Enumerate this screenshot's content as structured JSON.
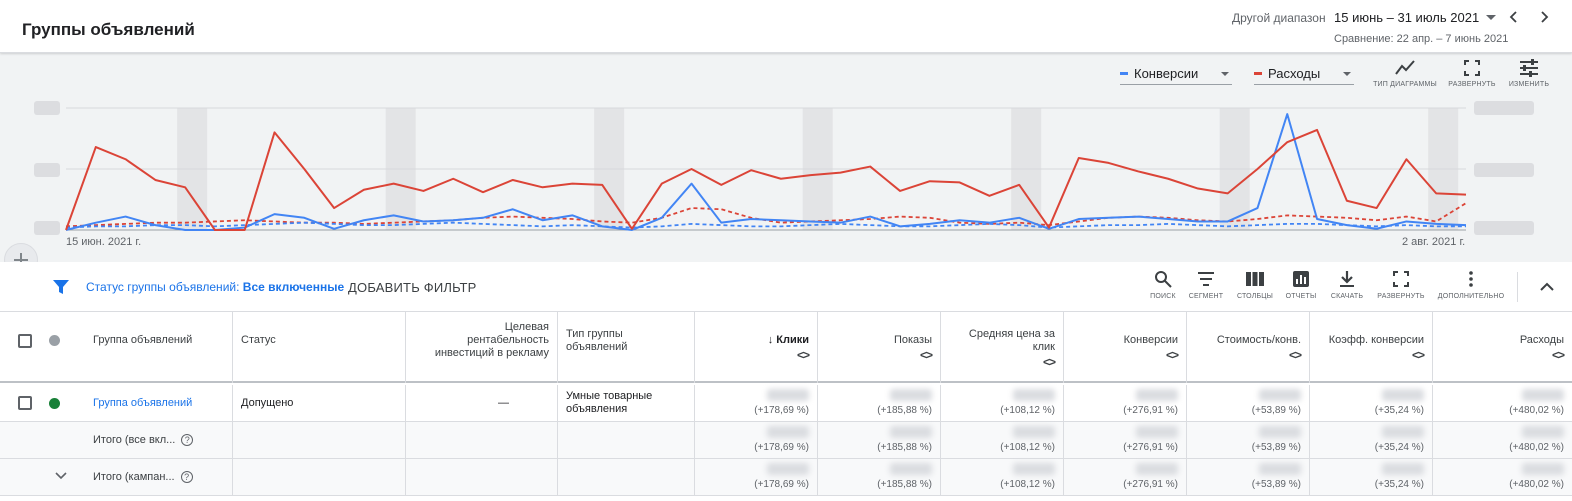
{
  "header": {
    "title": "Группы объявлений",
    "range_label": "Другой диапазон",
    "range_value": "15 июнь – 31 июль 2021",
    "compare": "Сравнение: 22 апр. – 7 июнь 2021"
  },
  "chart": {
    "metric1": "Конверсии",
    "metric2": "Расходы",
    "metric1_color": "#4285f4",
    "metric2_color": "#db4437",
    "tools": [
      "ТИП ДИАГРАММЫ",
      "РАЗВЕРНУТЬ",
      "ИЗМЕНИТЬ"
    ],
    "x_start": "15 июн. 2021 г.",
    "x_end": "2 авг. 2021 г."
  },
  "chart_data": {
    "type": "line",
    "x_start": "15 июн. 2021 г.",
    "x_end": "2 авг. 2021 г.",
    "axis_values_hidden": true,
    "series": [
      {
        "name": "Расходы",
        "color": "#db4437",
        "dashed": false,
        "values": [
          0,
          68,
          58,
          41,
          35,
          0,
          0,
          80,
          50,
          18,
          33,
          38,
          32,
          42,
          31,
          41,
          35,
          38,
          37,
          1,
          38,
          50,
          37,
          49,
          42,
          45,
          47,
          52,
          32,
          40,
          39,
          28,
          37,
          2,
          59,
          55,
          48,
          42,
          34,
          30,
          50,
          72,
          82,
          24,
          18,
          58,
          30,
          29
        ]
      },
      {
        "name": "Конверсии",
        "color": "#4285f4",
        "dashed": false,
        "values": [
          0,
          6,
          11,
          4,
          0,
          0,
          2,
          13,
          10,
          1,
          8,
          12,
          7,
          8,
          10,
          17,
          8,
          12,
          3,
          0,
          10,
          38,
          6,
          9,
          8,
          7,
          6,
          11,
          3,
          5,
          8,
          6,
          10,
          1,
          9,
          10,
          11,
          9,
          7,
          7,
          18,
          95,
          9,
          4,
          1,
          7,
          5,
          4
        ]
      },
      {
        "name": "Расходы (сравнение)",
        "color": "#db4437",
        "dashed": true,
        "values": [
          3,
          4,
          5,
          6,
          6,
          7,
          8,
          7,
          6,
          6,
          5,
          6,
          7,
          8,
          10,
          11,
          10,
          9,
          7,
          6,
          10,
          18,
          17,
          10,
          6,
          7,
          8,
          9,
          11,
          10,
          6,
          5,
          6,
          4,
          7,
          10,
          11,
          10,
          8,
          7,
          9,
          12,
          11,
          10,
          8,
          11,
          7,
          22
        ]
      },
      {
        "name": "Конверсии (сравнение)",
        "color": "#4285f4",
        "dashed": true,
        "values": [
          2,
          3,
          3,
          4,
          4,
          3,
          4,
          5,
          6,
          5,
          4,
          4,
          5,
          6,
          5,
          4,
          3,
          4,
          3,
          2,
          3,
          5,
          4,
          3,
          3,
          4,
          5,
          4,
          3,
          3,
          4,
          5,
          4,
          2,
          3,
          4,
          4,
          5,
          4,
          3,
          4,
          5,
          5,
          4,
          3,
          4,
          3,
          3
        ]
      }
    ]
  },
  "filter": {
    "label": "Статус группы объявлений:",
    "value": "Все включенные",
    "add": "ДОБАВИТЬ ФИЛЬТР",
    "tools": [
      "ПОИСК",
      "СЕГМЕНТ",
      "СТОЛБЦЫ",
      "ОТЧЕТЫ",
      "СКАЧАТЬ",
      "РАЗВЕРНУТЬ",
      "ДОПОЛНИТЕЛЬНО"
    ]
  },
  "table": {
    "headers": {
      "name": "Группа объявлений",
      "status": "Статус",
      "roas_1": "Целевая",
      "roas_2": "рентабельность",
      "roas_3": "инвестиций в рекламу",
      "type_1": "Тип группы",
      "type_2": "объявлений",
      "clicks": "↓ Клики",
      "impressions": "Показы",
      "cpc_1": "Средняя цена за",
      "cpc_2": "клик",
      "conversions": "Конверсии",
      "cost_conv": "Стоимость/конв.",
      "conv_rate": "Коэфф. конверсии",
      "cost": "Расходы",
      "sort": "<>"
    },
    "row1": {
      "name": "Группа объявлений",
      "status": "Допущено",
      "roas": "—",
      "type_1": "Умные товарные",
      "type_2": "объявления"
    },
    "total1": "Итого (все вкл...",
    "total2": "Итого (кампан...",
    "changes": [
      "(+178,69 %)",
      "(+185,88 %)",
      "(+108,12 %)",
      "(+276,91 %)",
      "(+53,89 %)",
      "(+35,24 %)",
      "(+480,02 %)"
    ]
  }
}
